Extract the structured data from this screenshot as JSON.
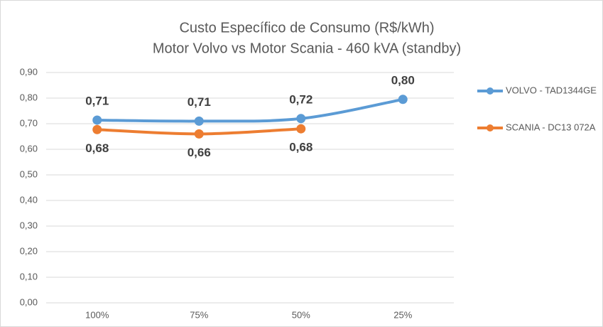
{
  "chart_data": {
    "type": "line",
    "title": "Custo Específico de Consumo  (R$/kWh)",
    "subtitle": "Motor Volvo vs Motor Scania - 460 kVA (standby)",
    "categories": [
      "100%",
      "75%",
      "50%",
      "25%"
    ],
    "series": [
      {
        "name": "VOLVO - TAD1344GE",
        "color": "#5b9bd5",
        "values": [
          0.714,
          0.71,
          0.72,
          0.795
        ],
        "value_labels": [
          "0,71",
          "0,71",
          "0,72",
          "0,80"
        ]
      },
      {
        "name": "SCANIA - DC13 072A",
        "color": "#ed7d31",
        "values": [
          0.677,
          0.66,
          0.68,
          null
        ],
        "value_labels": [
          "0,68",
          "0,66",
          "0,68",
          null
        ]
      }
    ],
    "ylim": [
      0,
      0.9
    ],
    "yticks": [
      {
        "value": 0,
        "label": "0,00"
      },
      {
        "value": 0.1,
        "label": "0,10"
      },
      {
        "value": 0.2,
        "label": "0,20"
      },
      {
        "value": 0.3,
        "label": "0,30"
      },
      {
        "value": 0.4,
        "label": "0,40"
      },
      {
        "value": 0.5,
        "label": "0,50"
      },
      {
        "value": 0.6,
        "label": "0,60"
      },
      {
        "value": 0.7,
        "label": "0,70"
      },
      {
        "value": 0.8,
        "label": "0,80"
      },
      {
        "value": 0.9,
        "label": "0,90"
      }
    ],
    "grid": true,
    "legend": "right",
    "smooth": true
  }
}
